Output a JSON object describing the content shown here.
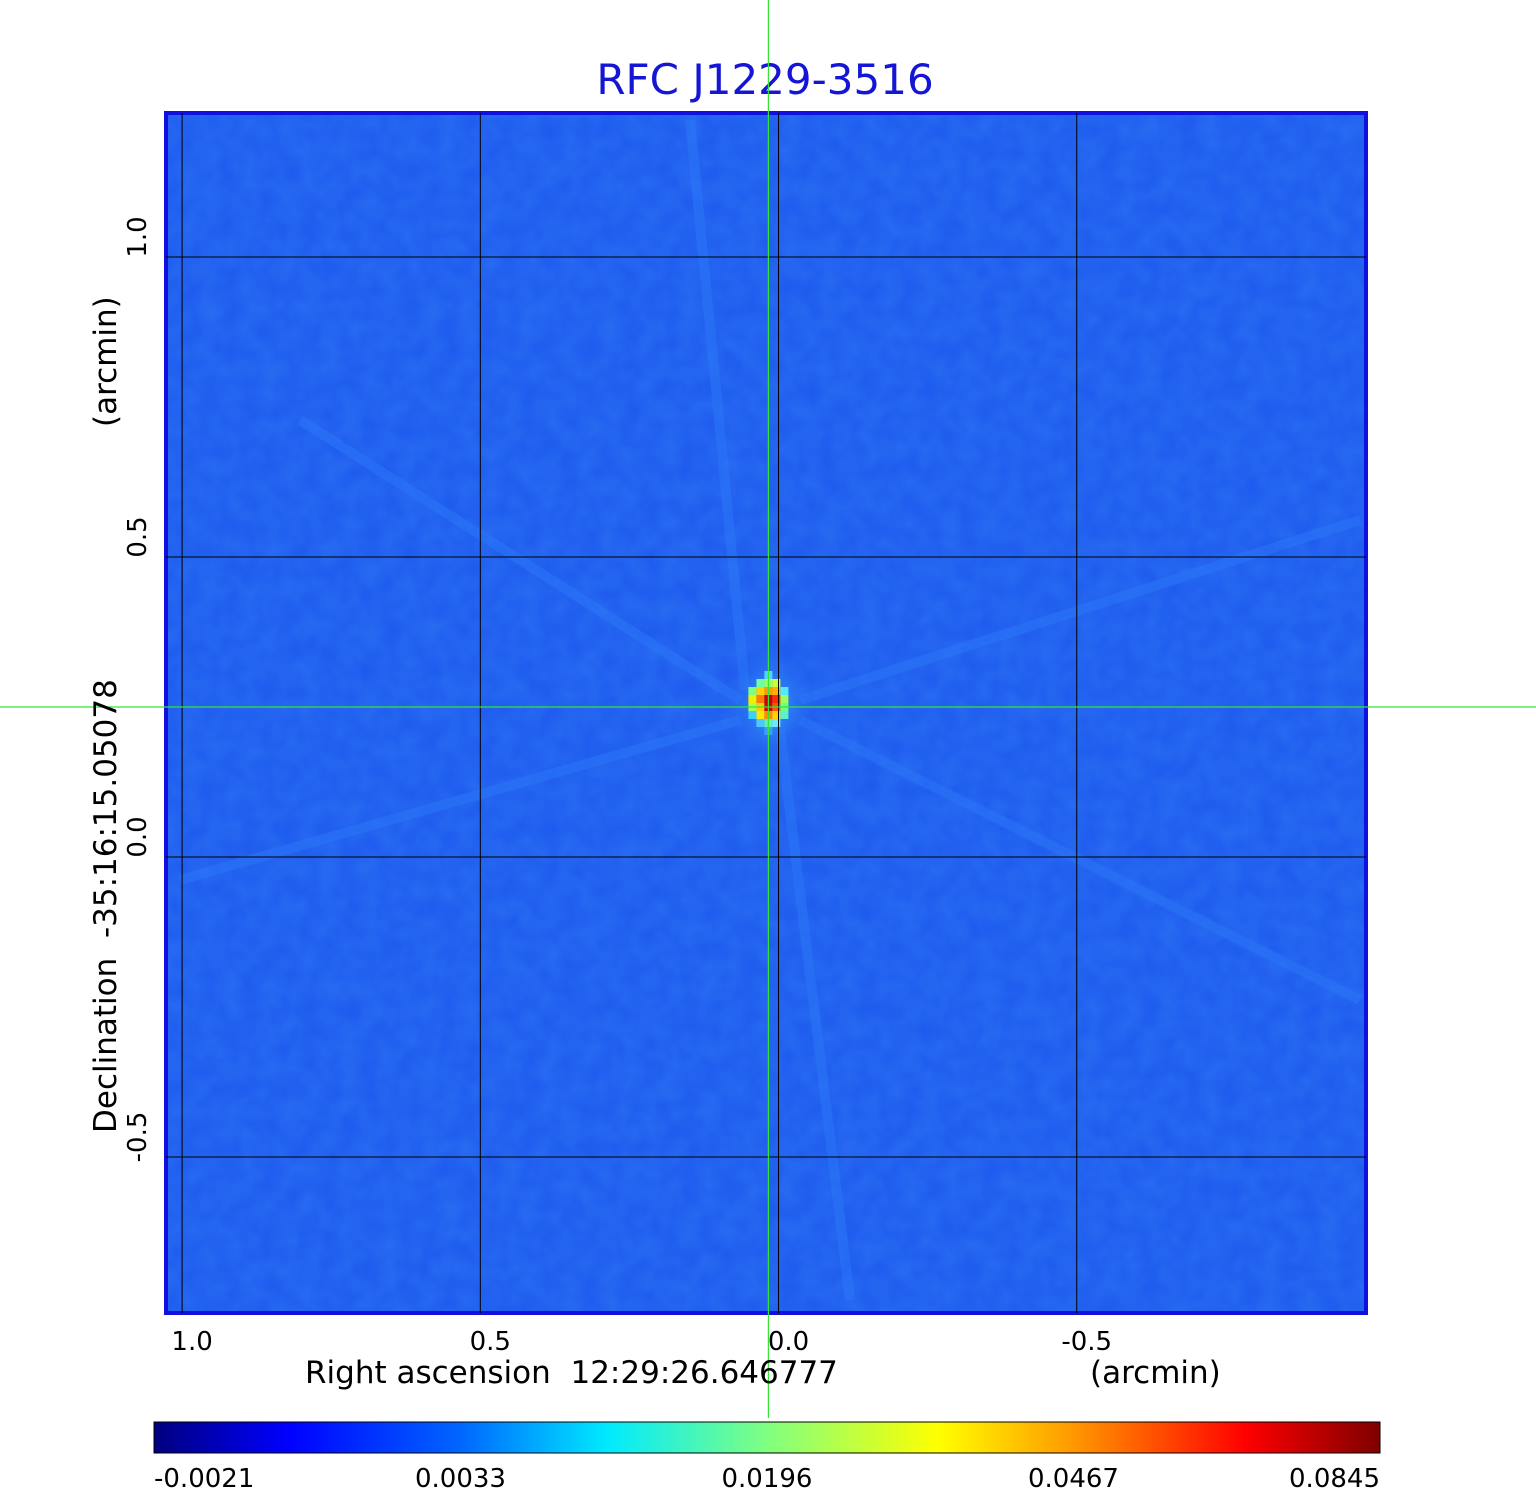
{
  "chart_data": {
    "type": "heatmap",
    "title": "RFC J1229-3516",
    "xlabel": "Right ascension  12:29:26.646777",
    "xunit": "(arcmin)",
    "ylabel": "Declination  -35:16:15.05078",
    "yunit": "(arcmin)",
    "x_ticks": [
      "1.0",
      "0.5",
      "0.0",
      "-0.5"
    ],
    "x_tick_values": [
      1.0,
      0.5,
      0.0,
      -0.5
    ],
    "y_ticks": [
      "1.0",
      "0.5",
      "0.0",
      "-0.5"
    ],
    "y_tick_values": [
      1.0,
      0.5,
      0.0,
      -0.5
    ],
    "xlim": [
      1.027,
      -0.985
    ],
    "ylim": [
      -0.76,
      1.24
    ],
    "grid": true,
    "colormap": "jet",
    "colorbar_ticks": [
      "-0.0021",
      "0.0033",
      "0.0196",
      "0.0467",
      "0.0845"
    ],
    "value_range": [
      -0.0021,
      0.0845
    ],
    "source": {
      "x": 0.017,
      "y": 0.25,
      "peak": 0.0845
    },
    "crosshair_color": "#33e633",
    "frame_color": "#1010e0"
  }
}
